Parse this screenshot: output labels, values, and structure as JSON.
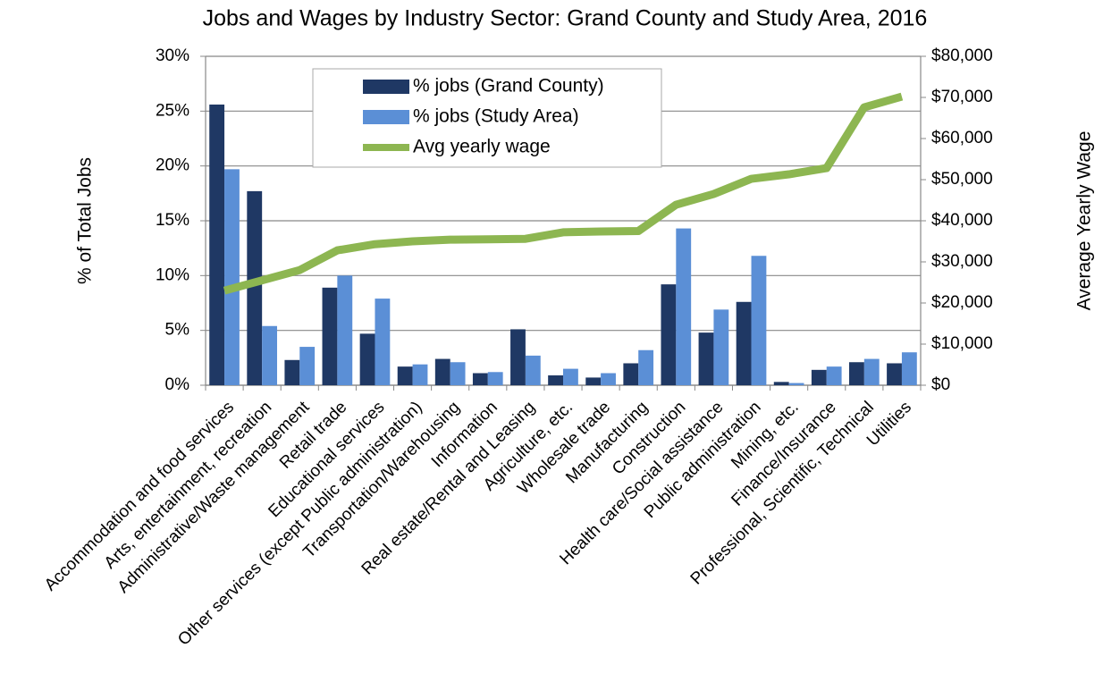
{
  "chart_data": {
    "type": "bar-line",
    "title": "Jobs and Wages by Industry Sector: Grand County and Study Area, 2016",
    "y_label": "% of Total Jobs",
    "y2_label": "Average Yearly Wage",
    "categories": [
      "Accommodation and food services",
      "Arts, entertainment, recreation",
      "Administrative/Waste management",
      "Retail trade",
      "Educational services",
      "Other services (except Public administration)",
      "Transportation/Warehousing",
      "Information",
      "Real estate/Rental and Leasing",
      "Agriculture, etc.",
      "Wholesale trade",
      "Manufacturing",
      "Construction",
      "Health care/Social assistance",
      "Public administration",
      "Mining, etc.",
      "Finance/Insurance",
      "Professional, Scientific, Technical",
      "Utilities"
    ],
    "series": [
      {
        "name": "% jobs (Grand County)",
        "type": "bar",
        "color": "#1f3864",
        "values": [
          25.6,
          17.7,
          2.3,
          8.9,
          4.7,
          1.7,
          2.4,
          1.1,
          5.1,
          0.9,
          0.7,
          2.0,
          9.2,
          4.8,
          7.6,
          0.3,
          1.4,
          2.1,
          2.0
        ]
      },
      {
        "name": "% jobs (Study Area)",
        "type": "bar",
        "color": "#5b8fd6",
        "values": [
          19.7,
          5.4,
          3.5,
          10.0,
          7.9,
          1.9,
          2.1,
          1.2,
          2.7,
          1.5,
          1.1,
          3.2,
          14.3,
          6.9,
          11.8,
          0.2,
          1.7,
          2.4,
          3.0
        ]
      },
      {
        "name": "Avg yearly wage",
        "type": "line",
        "axis": "y2",
        "color": "#8db651",
        "values": [
          23000,
          25500,
          28000,
          32800,
          34300,
          35000,
          35400,
          35500,
          35600,
          37200,
          37400,
          37500,
          43900,
          46500,
          50200,
          51300,
          52800,
          67600,
          70200
        ]
      }
    ],
    "ylim": [
      0,
      30
    ],
    "yticks": [
      {
        "value": 0,
        "label": "0%"
      },
      {
        "value": 5,
        "label": "5%"
      },
      {
        "value": 10,
        "label": "10%"
      },
      {
        "value": 15,
        "label": "15%"
      },
      {
        "value": 20,
        "label": "20%"
      },
      {
        "value": 25,
        "label": "25%"
      },
      {
        "value": 30,
        "label": "30%"
      }
    ],
    "y2lim": [
      0,
      80000
    ],
    "y2ticks": [
      {
        "value": 0,
        "label": "$0"
      },
      {
        "value": 10000,
        "label": "$10,000"
      },
      {
        "value": 20000,
        "label": "$20,000"
      },
      {
        "value": 30000,
        "label": "$30,000"
      },
      {
        "value": 40000,
        "label": "$40,000"
      },
      {
        "value": 50000,
        "label": "$50,000"
      },
      {
        "value": 60000,
        "label": "$60,000"
      },
      {
        "value": 70000,
        "label": "$70,000"
      },
      {
        "value": 80000,
        "label": "$80,000"
      }
    ],
    "grid": true,
    "legend": "top-left"
  }
}
